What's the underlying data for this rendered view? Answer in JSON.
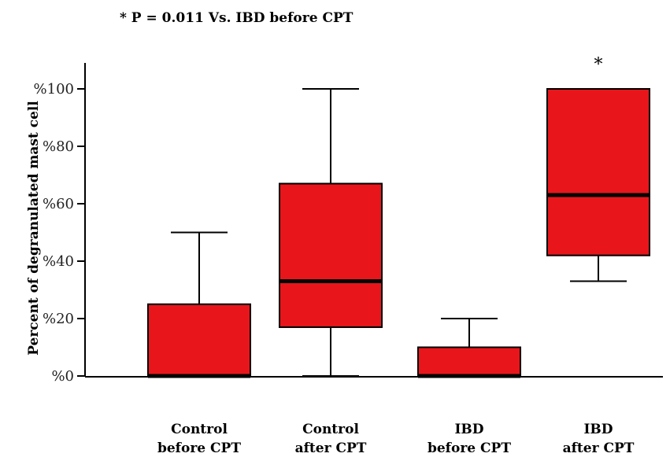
{
  "chart_data": {
    "type": "box",
    "note": "* P = 0.011 Vs. IBD before CPT",
    "ylabel": "Percent of degranulated mast cell",
    "xlabel": "",
    "ylim": [
      0,
      100
    ],
    "yticks": [
      0,
      20,
      40,
      60,
      80,
      100
    ],
    "ytick_labels": [
      "%0",
      "%20",
      "%40",
      "%60",
      "%80",
      "%100"
    ],
    "categories": [
      {
        "line1": "Control",
        "line2": "before CPT"
      },
      {
        "line1": "Control",
        "line2": "after CPT"
      },
      {
        "line1": "IBD",
        "line2": "before CPT"
      },
      {
        "line1": "IBD",
        "line2": "after CPT"
      }
    ],
    "boxes": [
      {
        "min": 0,
        "q1": 0,
        "median": 0,
        "q3": 25,
        "max": 50,
        "marker": ""
      },
      {
        "min": 0,
        "q1": 17,
        "median": 33,
        "q3": 67,
        "max": 100,
        "marker": ""
      },
      {
        "min": 0,
        "q1": 0,
        "median": 0,
        "q3": 10,
        "max": 20,
        "marker": ""
      },
      {
        "min": 33,
        "q1": 42,
        "median": 63,
        "q3": 100,
        "max": 100,
        "marker": "*"
      }
    ],
    "colors": {
      "box_fill": "#e8161b",
      "line": "#000000"
    }
  }
}
